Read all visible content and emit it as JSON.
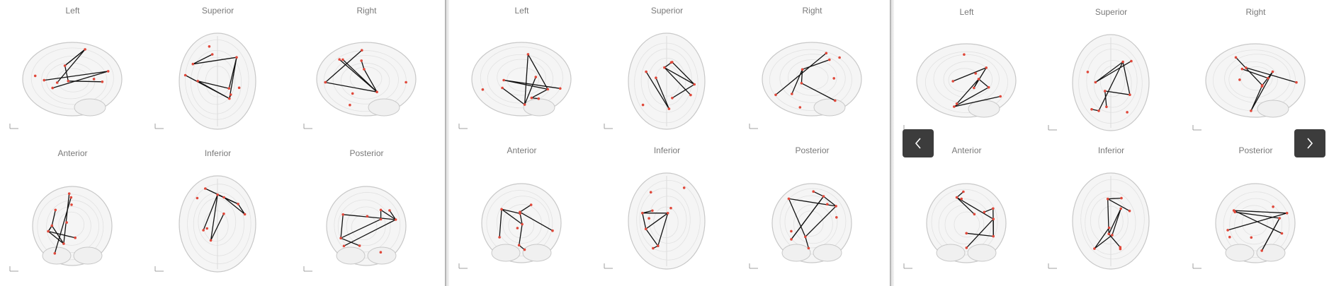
{
  "panels": [
    {
      "views": [
        {
          "label": "Left"
        },
        {
          "label": "Superior"
        },
        {
          "label": "Right"
        },
        {
          "label": "Anterior"
        },
        {
          "label": "Inferior"
        },
        {
          "label": "Posterior"
        }
      ]
    },
    {
      "views": [
        {
          "label": "Left"
        },
        {
          "label": "Superior"
        },
        {
          "label": "Right"
        },
        {
          "label": "Anterior"
        },
        {
          "label": "Inferior"
        },
        {
          "label": "Posterior"
        }
      ]
    },
    {
      "views": [
        {
          "label": "Left"
        },
        {
          "label": "Superior"
        },
        {
          "label": "Right"
        },
        {
          "label": "Anterior"
        },
        {
          "label": "Inferior"
        },
        {
          "label": "Posterior"
        }
      ]
    }
  ],
  "navigation": {
    "prev_icon": "chevron-left-icon",
    "next_icon": "chevron-right-icon"
  },
  "colors": {
    "node": "#e0483a",
    "edge": "#111111",
    "brain_outline": "#c8c8c8",
    "nav_button": "#3c3c3c"
  }
}
